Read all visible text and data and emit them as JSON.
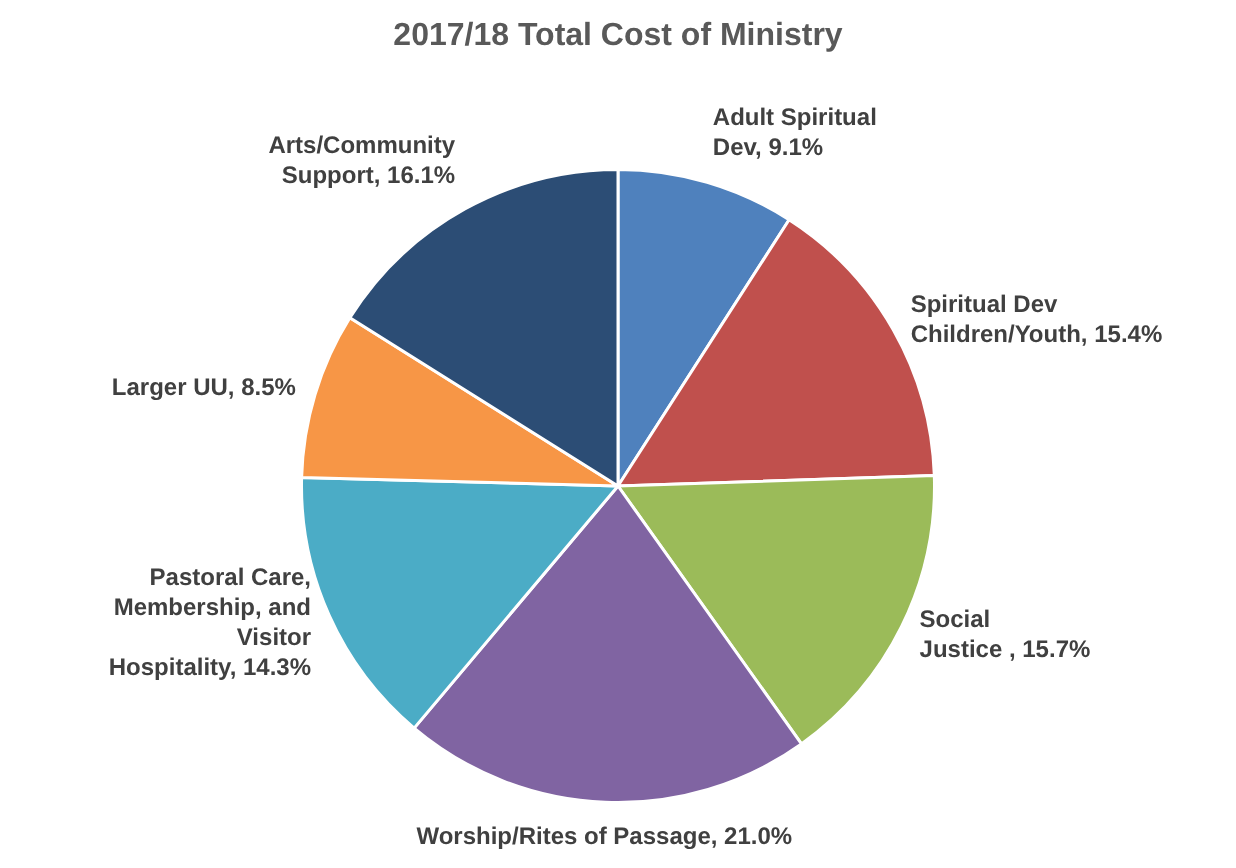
{
  "chart_data": {
    "type": "pie",
    "title": "2017/18 Total Cost of Ministry",
    "categories": [
      "Adult Spiritual Dev",
      "Spiritual Dev Children/Youth",
      "Social Justice ",
      "Worship/Rites of Passage",
      "Pastoral Care, Membership, and Visitor Hospitality",
      "Larger UU",
      "Arts/Community Support"
    ],
    "values": [
      9.1,
      15.4,
      15.7,
      21.0,
      14.3,
      8.5,
      16.1
    ],
    "value_labels": [
      "9.1%",
      "15.4%",
      "15.7%",
      "21.0%",
      "14.3%",
      "8.5%",
      "16.1%"
    ],
    "colors": [
      "#4f81bd",
      "#c0504d",
      "#9bbb59",
      "#8064a2",
      "#4bacc6",
      "#f79646",
      "#2c4d75"
    ],
    "legend": false
  }
}
